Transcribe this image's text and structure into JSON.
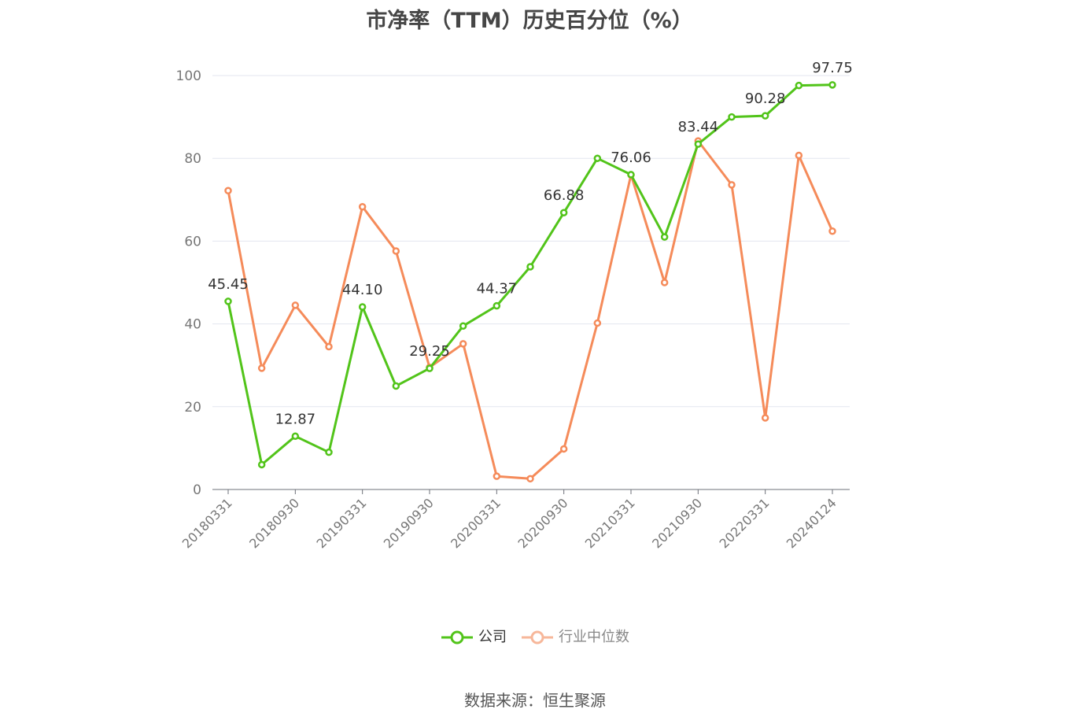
{
  "chart_data": {
    "type": "line",
    "title": "市净率（TTM）历史百分位（%）",
    "ylim": [
      0,
      100
    ],
    "yticks": [
      0,
      20,
      40,
      60,
      80,
      100
    ],
    "grid": true,
    "legend_position": "bottom",
    "x": [
      "20180331",
      "20180630",
      "20180930",
      "20181231",
      "20190331",
      "20190630",
      "20190930",
      "20191231",
      "20200331",
      "20200630",
      "20200930",
      "20201231",
      "20210331",
      "20210630",
      "20210930",
      "20211231",
      "20220331",
      "20220630",
      "20240124"
    ],
    "xtick_labels": [
      "20180331",
      "20180930",
      "20190331",
      "20190930",
      "20200331",
      "20200930",
      "20210331",
      "20210930",
      "20220331",
      "20240124"
    ],
    "xtick_indices": [
      0,
      2,
      4,
      6,
      8,
      10,
      12,
      14,
      16,
      18
    ],
    "series": [
      {
        "name": "公司",
        "color": "#52c41a",
        "values": [
          45.45,
          6.0,
          12.87,
          9.0,
          44.1,
          25.0,
          29.25,
          39.5,
          44.37,
          53.8,
          66.88,
          80.0,
          76.06,
          61.0,
          83.44,
          90.0,
          90.28,
          97.6,
          97.75
        ],
        "labels": {
          "0": "45.45",
          "2": "12.87",
          "4": "44.10",
          "6": "29.25",
          "8": "44.37",
          "10": "66.88",
          "12": "76.06",
          "14": "83.44",
          "16": "90.28",
          "18": "97.75"
        }
      },
      {
        "name": "行业中位数",
        "color": "#f58b5a",
        "values": [
          72.2,
          29.3,
          44.5,
          34.5,
          68.3,
          57.6,
          29.5,
          35.2,
          3.2,
          2.6,
          9.8,
          40.2,
          76.0,
          50.0,
          84.2,
          73.6,
          17.3,
          80.7,
          62.4
        ]
      }
    ]
  },
  "legend": {
    "company": "公司",
    "industry": "行业中位数",
    "company_color": "#52c41a",
    "industry_color": "#f58b5a"
  },
  "source": "数据来源：恒生聚源"
}
